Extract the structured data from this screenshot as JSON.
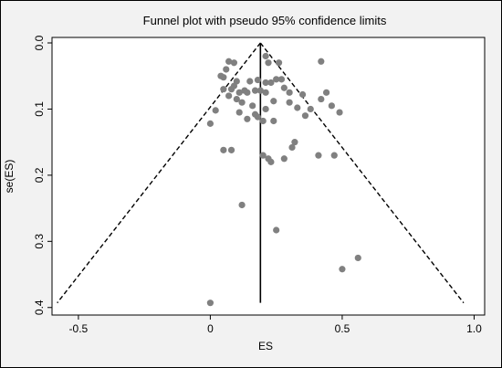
{
  "chart_data": {
    "type": "scatter",
    "title": "Funnel plot with pseudo 95% confidence limits",
    "xlabel": "ES",
    "ylabel": "se(ES)",
    "xlim": [
      -0.6,
      1.04
    ],
    "ylim": [
      0,
      0.41
    ],
    "y_reversed": true,
    "x_ticks": [
      -0.5,
      0,
      0.5,
      1.0
    ],
    "x_tick_labels": [
      "-0.5",
      "0",
      "0.5",
      "1.0"
    ],
    "y_ticks": [
      0,
      0.1,
      0.2,
      0.3,
      0.4
    ],
    "y_tick_labels": [
      "0.0",
      "0.1",
      "0.2",
      "0.3",
      "0.4"
    ],
    "pooled_estimate": 0.19,
    "ci_se_max": 0.393,
    "point_color": "#808080",
    "line_color": "#000000",
    "points": [
      [
        0.0,
        0.393
      ],
      [
        0.0,
        0.122
      ],
      [
        0.02,
        0.102
      ],
      [
        0.04,
        0.05
      ],
      [
        0.05,
        0.052
      ],
      [
        0.05,
        0.07
      ],
      [
        0.06,
        0.04
      ],
      [
        0.05,
        0.162
      ],
      [
        0.07,
        0.028
      ],
      [
        0.08,
        0.162
      ],
      [
        0.09,
        0.03
      ],
      [
        0.09,
        0.065
      ],
      [
        0.1,
        0.058
      ],
      [
        0.07,
        0.08
      ],
      [
        0.08,
        0.07
      ],
      [
        0.1,
        0.085
      ],
      [
        0.11,
        0.075
      ],
      [
        0.11,
        0.105
      ],
      [
        0.12,
        0.09
      ],
      [
        0.13,
        0.072
      ],
      [
        0.14,
        0.075
      ],
      [
        0.12,
        0.245
      ],
      [
        0.14,
        0.115
      ],
      [
        0.15,
        0.058
      ],
      [
        0.16,
        0.095
      ],
      [
        0.17,
        0.072
      ],
      [
        0.17,
        0.108
      ],
      [
        0.18,
        0.056
      ],
      [
        0.18,
        0.112
      ],
      [
        0.19,
        0.072
      ],
      [
        0.2,
        0.118
      ],
      [
        0.2,
        0.17
      ],
      [
        0.21,
        0.02
      ],
      [
        0.21,
        0.06
      ],
      [
        0.21,
        0.075
      ],
      [
        0.21,
        0.1
      ],
      [
        0.22,
        0.175
      ],
      [
        0.22,
        0.03
      ],
      [
        0.23,
        0.18
      ],
      [
        0.23,
        0.06
      ],
      [
        0.24,
        0.088
      ],
      [
        0.24,
        0.118
      ],
      [
        0.25,
        0.283
      ],
      [
        0.25,
        0.055
      ],
      [
        0.26,
        0.03
      ],
      [
        0.27,
        0.055
      ],
      [
        0.28,
        0.068
      ],
      [
        0.28,
        0.175
      ],
      [
        0.3,
        0.09
      ],
      [
        0.3,
        0.075
      ],
      [
        0.31,
        0.158
      ],
      [
        0.32,
        0.15
      ],
      [
        0.33,
        0.098
      ],
      [
        0.35,
        0.078
      ],
      [
        0.36,
        0.11
      ],
      [
        0.38,
        0.1
      ],
      [
        0.41,
        0.17
      ],
      [
        0.42,
        0.028
      ],
      [
        0.42,
        0.085
      ],
      [
        0.44,
        0.075
      ],
      [
        0.46,
        0.095
      ],
      [
        0.47,
        0.17
      ],
      [
        0.49,
        0.105
      ],
      [
        0.5,
        0.342
      ],
      [
        0.56,
        0.325
      ]
    ]
  }
}
